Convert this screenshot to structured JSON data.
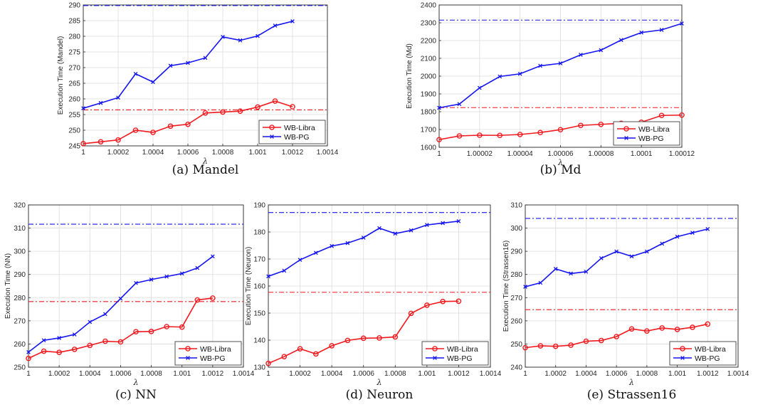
{
  "colors": {
    "libra": "#f0191e",
    "pg": "#1414f0",
    "grid": "#dcdcdc",
    "axis": "#262626"
  },
  "chart_data": [
    {
      "type": "line",
      "caption": "(a) Mandel",
      "xlabel": "λ",
      "ylabel": "Execution Time (Mandel)",
      "xlim": [
        1,
        1.0014
      ],
      "ylim": [
        245,
        290
      ],
      "xticks": [
        1,
        1.0002,
        1.0004,
        1.0006,
        1.0008,
        1.001,
        1.0012,
        1.0014
      ],
      "xticklabels": [
        "1",
        "1.0002",
        "1.0004",
        "1.0006",
        "1.0008",
        "1.001",
        "1.0012",
        "1.0014"
      ],
      "yticks": [
        245,
        250,
        255,
        260,
        265,
        270,
        275,
        280,
        285,
        290
      ],
      "yticklabels": [
        "245",
        "250",
        "255",
        "260",
        "265",
        "270",
        "275",
        "280",
        "285",
        "290"
      ],
      "grid": true,
      "legend_position": "lower-right",
      "x": [
        1,
        1.0001,
        1.0002,
        1.0003,
        1.0004,
        1.0005,
        1.0006,
        1.0007,
        1.0008,
        1.0009,
        1.001,
        1.0011,
        1.0012
      ],
      "series": [
        {
          "name": "WB-Libra",
          "marker": "circle",
          "values": [
            245.7,
            246.3,
            246.9,
            250.0,
            249.3,
            251.3,
            251.9,
            255.5,
            255.8,
            256.1,
            257.4,
            259.3,
            257.5
          ]
        },
        {
          "name": "WB-PG",
          "marker": "x",
          "values": [
            257.0,
            258.7,
            260.4,
            268.0,
            265.4,
            270.6,
            271.5,
            273.1,
            279.8,
            278.7,
            280.1,
            283.4,
            284.8
          ]
        }
      ],
      "reference_lines": [
        {
          "series": "WB-Libra",
          "y": 256.5
        },
        {
          "series": "WB-PG",
          "y": 290
        }
      ]
    },
    {
      "type": "line",
      "caption": "(b) Md",
      "xlabel": "λ",
      "ylabel": "Execution Time (Md)",
      "xlim": [
        1,
        1.00012
      ],
      "ylim": [
        1600,
        2400
      ],
      "xticks": [
        1,
        1.00002,
        1.00004,
        1.00006,
        1.00008,
        1.0001,
        1.00012
      ],
      "xticklabels": [
        "1",
        "1.00002",
        "1.00004",
        "1.00006",
        "1.00008",
        "1.0001",
        "1.00012"
      ],
      "yticks": [
        1600,
        1700,
        1800,
        1900,
        2000,
        2100,
        2200,
        2300,
        2400
      ],
      "yticklabels": [
        "1600",
        "1700",
        "1800",
        "1900",
        "2000",
        "2100",
        "2200",
        "2300",
        "2400"
      ],
      "grid": true,
      "legend_position": "lower-right",
      "x": [
        1,
        1.00001,
        1.00002,
        1.00003,
        1.00004,
        1.00005,
        1.00006,
        1.00007,
        1.00008,
        1.00009,
        1.0001,
        1.00011,
        1.00012
      ],
      "series": [
        {
          "name": "WB-Libra",
          "marker": "circle",
          "values": [
            1643,
            1664,
            1668,
            1667,
            1672,
            1683,
            1699,
            1723,
            1729,
            1735,
            1741,
            1779,
            1781
          ]
        },
        {
          "name": "WB-PG",
          "marker": "x",
          "values": [
            1822,
            1843,
            1934,
            1998,
            2013,
            2058,
            2072,
            2120,
            2146,
            2203,
            2245,
            2260,
            2296
          ]
        }
      ],
      "reference_lines": [
        {
          "series": "WB-Libra",
          "y": 1823
        },
        {
          "series": "WB-PG",
          "y": 2315
        }
      ]
    },
    {
      "type": "line",
      "caption": "(c) NN",
      "xlabel": "λ",
      "ylabel": "Execution Time (NN)",
      "xlim": [
        1,
        1.0014
      ],
      "ylim": [
        250,
        320
      ],
      "xticks": [
        1,
        1.0002,
        1.0004,
        1.0006,
        1.0008,
        1.001,
        1.0012,
        1.0014
      ],
      "xticklabels": [
        "1",
        "1.0002",
        "1.0004",
        "1.0006",
        "1.0008",
        "1.001",
        "1.0012",
        "1.0014"
      ],
      "yticks": [
        250,
        260,
        270,
        280,
        290,
        300,
        310,
        320
      ],
      "yticklabels": [
        "250",
        "260",
        "270",
        "280",
        "290",
        "300",
        "310",
        "320"
      ],
      "grid": true,
      "legend_position": "lower-right",
      "x": [
        1,
        1.0001,
        1.0002,
        1.0003,
        1.0004,
        1.0005,
        1.0006,
        1.0007,
        1.0008,
        1.0009,
        1.001,
        1.0011,
        1.0012
      ],
      "series": [
        {
          "name": "WB-Libra",
          "marker": "circle",
          "values": [
            253.8,
            256.9,
            256.4,
            257.7,
            259.4,
            261.2,
            260.9,
            265.3,
            265.4,
            267.5,
            267.3,
            279.0,
            279.8
          ]
        },
        {
          "name": "WB-PG",
          "marker": "x",
          "values": [
            256.5,
            261.6,
            262.6,
            264.1,
            269.5,
            272.9,
            279.6,
            286.3,
            287.8,
            289.1,
            290.4,
            292.8,
            297.8
          ]
        }
      ],
      "reference_lines": [
        {
          "series": "WB-Libra",
          "y": 278.3
        },
        {
          "series": "WB-PG",
          "y": 311.7
        }
      ]
    },
    {
      "type": "line",
      "caption": "(d) Neuron",
      "xlabel": "λ",
      "ylabel": "Execution Time (Neuron)",
      "xlim": [
        1,
        1.0014
      ],
      "ylim": [
        130,
        190
      ],
      "xticks": [
        1,
        1.0002,
        1.0004,
        1.0006,
        1.0008,
        1.001,
        1.0012,
        1.0014
      ],
      "xticklabels": [
        "1",
        "1.0002",
        "1.0004",
        "1.0006",
        "1.0008",
        "1.001",
        "1.0012",
        "1.0014"
      ],
      "yticks": [
        130,
        140,
        150,
        160,
        170,
        180,
        190
      ],
      "yticklabels": [
        "130",
        "140",
        "150",
        "160",
        "170",
        "180",
        "190"
      ],
      "grid": true,
      "legend_position": "lower-right",
      "x": [
        1,
        1.0001,
        1.0002,
        1.0003,
        1.0004,
        1.0005,
        1.0006,
        1.0007,
        1.0008,
        1.0009,
        1.001,
        1.0011,
        1.0012
      ],
      "series": [
        {
          "name": "WB-Libra",
          "marker": "circle",
          "values": [
            131.4,
            133.9,
            136.8,
            134.9,
            137.9,
            139.9,
            140.7,
            140.8,
            141.2,
            149.9,
            152.9,
            154.3,
            154.4
          ]
        },
        {
          "name": "WB-PG",
          "marker": "x",
          "values": [
            163.6,
            165.7,
            169.7,
            172.3,
            174.8,
            175.9,
            177.9,
            181.4,
            179.4,
            180.6,
            182.6,
            183.3,
            184.0
          ]
        }
      ],
      "reference_lines": [
        {
          "series": "WB-Libra",
          "y": 157.7
        },
        {
          "series": "WB-PG",
          "y": 187.2
        }
      ]
    },
    {
      "type": "line",
      "caption": "(e) Strassen16",
      "xlabel": "λ",
      "ylabel": "Execution Time (Strassen16)",
      "xlim": [
        1,
        1.0014
      ],
      "ylim": [
        240,
        310
      ],
      "xticks": [
        1,
        1.0002,
        1.0004,
        1.0006,
        1.0008,
        1.001,
        1.0012,
        1.0014
      ],
      "xticklabels": [
        "1",
        "1.0002",
        "1.0004",
        "1.0006",
        "1.0008",
        "1.001",
        "1.0012",
        "1.0014"
      ],
      "yticks": [
        240,
        250,
        260,
        270,
        280,
        290,
        300,
        310
      ],
      "yticklabels": [
        "240",
        "250",
        "260",
        "270",
        "280",
        "290",
        "300",
        "310"
      ],
      "grid": true,
      "legend_position": "lower-right",
      "x": [
        1,
        1.0001,
        1.0002,
        1.0003,
        1.0004,
        1.0005,
        1.0006,
        1.0007,
        1.0008,
        1.0009,
        1.001,
        1.0011,
        1.0012
      ],
      "series": [
        {
          "name": "WB-Libra",
          "marker": "circle",
          "values": [
            248.4,
            249.2,
            249.0,
            249.5,
            251.2,
            251.5,
            253.2,
            256.5,
            255.6,
            256.9,
            256.3,
            257.2,
            258.6
          ]
        },
        {
          "name": "WB-PG",
          "marker": "x",
          "values": [
            274.7,
            276.4,
            282.4,
            280.4,
            281.2,
            287.0,
            289.9,
            287.8,
            289.9,
            293.3,
            296.3,
            298.0,
            299.6
          ]
        }
      ],
      "reference_lines": [
        {
          "series": "WB-Libra",
          "y": 264.8
        },
        {
          "series": "WB-PG",
          "y": 304.2
        }
      ]
    }
  ]
}
